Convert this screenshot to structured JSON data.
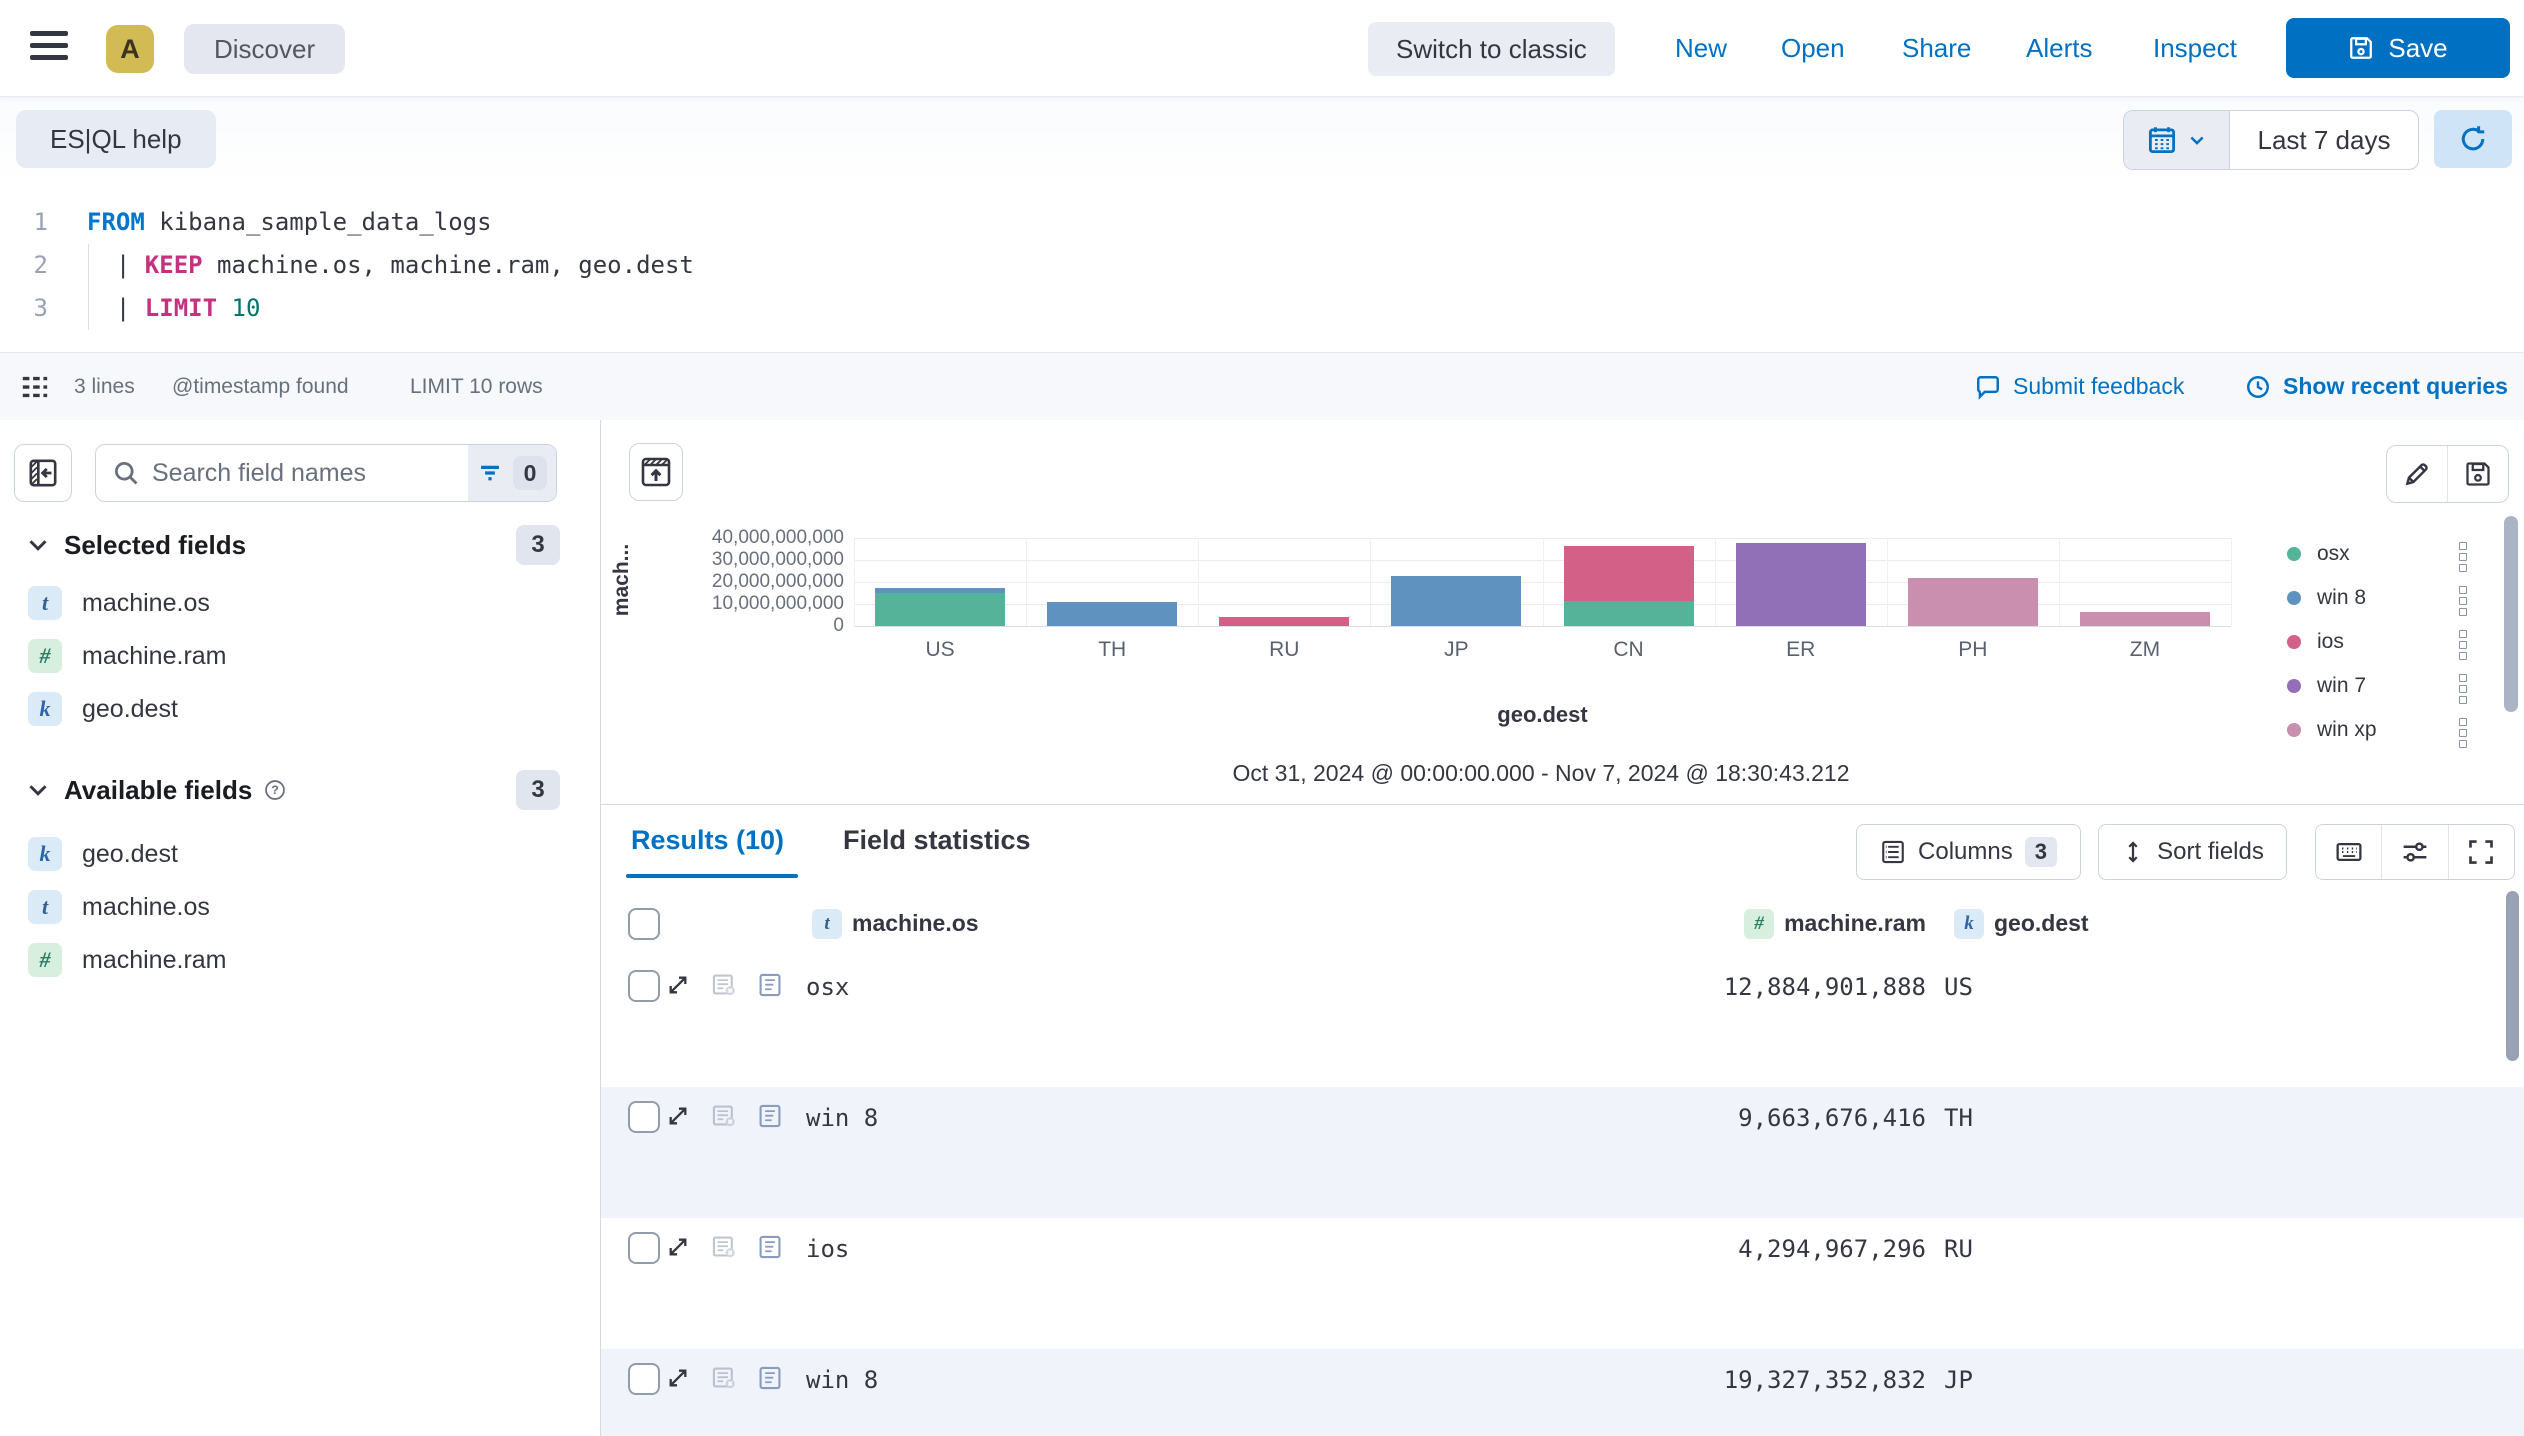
{
  "topbar": {
    "avatar_initial": "A",
    "breadcrumb": "Discover",
    "switch_classic": "Switch to classic",
    "nav": [
      "New",
      "Open",
      "Share",
      "Alerts",
      "Inspect"
    ],
    "save_label": "Save"
  },
  "querybar": {
    "esql_help": "ES|QL help",
    "time_range": "Last 7 days"
  },
  "editor": {
    "lines": [
      {
        "num": "1",
        "tokens": [
          {
            "c": "kwb",
            "v": "FROM"
          },
          {
            "c": "p",
            "v": " kibana_sample_data_logs"
          }
        ]
      },
      {
        "num": "2",
        "tokens": [
          {
            "c": "p",
            "v": "  | "
          },
          {
            "c": "kwp",
            "v": "KEEP"
          },
          {
            "c": "p",
            "v": " machine.os, machine.ram, geo.dest"
          }
        ]
      },
      {
        "num": "3",
        "tokens": [
          {
            "c": "p",
            "v": "  | "
          },
          {
            "c": "kwp",
            "v": "LIMIT"
          },
          {
            "c": "p",
            "v": " "
          },
          {
            "c": "num",
            "v": "10"
          }
        ]
      }
    ]
  },
  "statusbar": {
    "lines_count": "3 lines",
    "timestamp_note": "@timestamp found",
    "limit_note": "LIMIT 10 rows",
    "submit_feedback": "Submit feedback",
    "recent_queries": "Show recent queries"
  },
  "sidebar": {
    "search_placeholder": "Search field names",
    "filter_count": "0",
    "selected": {
      "label": "Selected fields",
      "count": "3",
      "items": [
        {
          "type": "t",
          "name": "machine.os"
        },
        {
          "type": "#",
          "name": "machine.ram"
        },
        {
          "type": "k",
          "name": "geo.dest"
        }
      ]
    },
    "available": {
      "label": "Available fields",
      "count": "3",
      "items": [
        {
          "type": "k",
          "name": "geo.dest"
        },
        {
          "type": "t",
          "name": "machine.os"
        },
        {
          "type": "#",
          "name": "machine.ram"
        }
      ]
    }
  },
  "chart_data": {
    "type": "bar",
    "stacked": true,
    "categories": [
      "US",
      "TH",
      "RU",
      "JP",
      "CN",
      "ER",
      "PH",
      "ZM"
    ],
    "series": [
      {
        "name": "osx",
        "color": "#54b399",
        "values": [
          15000000000,
          0,
          0,
          0,
          11400000000,
          0,
          0,
          0
        ]
      },
      {
        "name": "win 8",
        "color": "#6092c0",
        "values": [
          2200000000,
          10900000000,
          0,
          22700000000,
          0,
          0,
          0,
          0
        ]
      },
      {
        "name": "ios",
        "color": "#d36086",
        "values": [
          0,
          0,
          4300000000,
          0,
          25000000000,
          0,
          0,
          0
        ]
      },
      {
        "name": "win 7",
        "color": "#9170b8",
        "values": [
          0,
          0,
          0,
          0,
          0,
          37600000000,
          0,
          0
        ]
      },
      {
        "name": "win xp",
        "color": "#ca8eae",
        "values": [
          0,
          0,
          0,
          0,
          0,
          0,
          21700000000,
          6200000000
        ]
      }
    ],
    "xlabel": "geo.dest",
    "ylabel": "mach...",
    "ylim": [
      0,
      40000000000
    ],
    "yticks": [
      "0",
      "10,000,000,000",
      "20,000,000,000",
      "30,000,000,000",
      "40,000,000,000"
    ],
    "legend_position": "right",
    "subtitle": "Oct 31, 2024 @ 00:00:00.000 - Nov 7, 2024 @ 18:30:43.212"
  },
  "results": {
    "tabs": [
      {
        "label": "Results (10)",
        "active": true
      },
      {
        "label": "Field statistics",
        "active": false
      }
    ],
    "columns_button": "Columns",
    "columns_count": "3",
    "sort_button": "Sort fields",
    "table": {
      "headers": [
        {
          "type": "t",
          "name": "machine.os"
        },
        {
          "type": "#",
          "name": "machine.ram"
        },
        {
          "type": "k",
          "name": "geo.dest"
        }
      ],
      "rows": [
        {
          "machine_os": "osx",
          "machine_ram": "12,884,901,888",
          "geo_dest": "US"
        },
        {
          "machine_os": "win 8",
          "machine_ram": "9,663,676,416",
          "geo_dest": "TH"
        },
        {
          "machine_os": "ios",
          "machine_ram": "4,294,967,296",
          "geo_dest": "RU"
        },
        {
          "machine_os": "win 8",
          "machine_ram": "19,327,352,832",
          "geo_dest": "JP"
        }
      ]
    }
  },
  "colors": {
    "primary": "#0071c3",
    "save_button": "#0071c2",
    "stripe_row": "#f0f3fa",
    "border": "#d3dae6",
    "muted_text": "#69707d"
  },
  "icons": {
    "menu": "hamburger",
    "calendar": "calendar-grid",
    "chevron_down": "chevron",
    "refresh": "circular-arrow",
    "save": "floppy-disk",
    "feedback": "speech-bubble",
    "recent": "clock-history",
    "search": "magnifier",
    "filter": "filter-lines",
    "collapse": "panel-collapse-left",
    "add_panel": "add-to-dashboard",
    "edit": "pencil",
    "columns": "table",
    "sort": "vertical-arrows",
    "keyboard": "keyboard",
    "display_options": "sliders",
    "fullscreen": "corner-brackets",
    "expand_row": "diagonal-expand",
    "degraded_docs": "table-warning",
    "view_doc": "document",
    "legend_menu": "dots-menu",
    "help": "question-circle"
  }
}
